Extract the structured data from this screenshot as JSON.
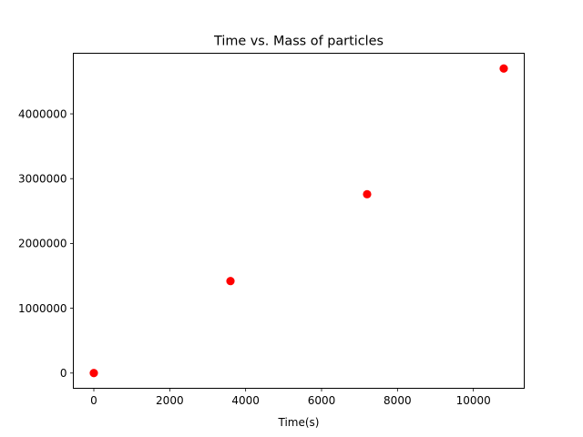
{
  "chart_data": {
    "type": "scatter",
    "title": "Time vs. Mass of particles",
    "xlabel": "Time(s)",
    "ylabel": "",
    "xlim": [
      -540,
      11340
    ],
    "ylim": [
      -235000,
      4935000
    ],
    "xticks": [
      0,
      2000,
      4000,
      6000,
      8000,
      10000
    ],
    "xtick_labels": [
      "0",
      "2000",
      "4000",
      "6000",
      "8000",
      "10000"
    ],
    "yticks": [
      0,
      1000000,
      2000000,
      3000000,
      4000000
    ],
    "ytick_labels": [
      "0",
      "1000000",
      "2000000",
      "3000000",
      "4000000"
    ],
    "grid": false,
    "series": [
      {
        "color": "#ff0000",
        "points": [
          {
            "x": 0,
            "y": 0
          },
          {
            "x": 3600,
            "y": 1420000
          },
          {
            "x": 7200,
            "y": 2760000
          },
          {
            "x": 10800,
            "y": 4700000
          }
        ]
      }
    ]
  }
}
